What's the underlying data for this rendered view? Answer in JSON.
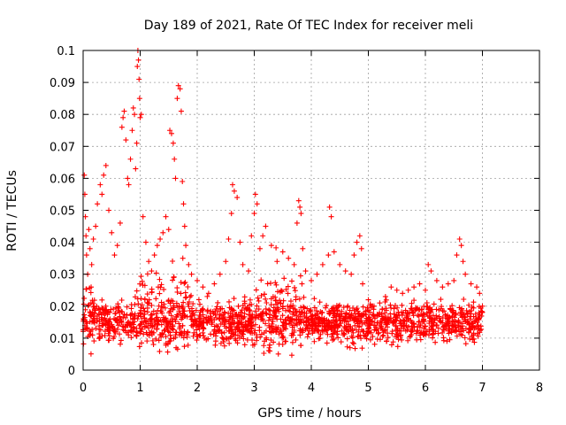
{
  "chart_data": {
    "type": "scatter",
    "title": "Day 189 of 2021, Rate Of TEC Index for receiver meli",
    "xlabel": "GPS time / hours",
    "ylabel": "ROTI / TECUs",
    "xlim": [
      0,
      8
    ],
    "ylim": [
      0,
      0.1
    ],
    "x_ticks": [
      "0",
      "1",
      "2",
      "3",
      "4",
      "5",
      "6",
      "7",
      "8"
    ],
    "y_ticks": [
      "0",
      "0.01",
      "0.02",
      "0.03",
      "0.04",
      "0.05",
      "0.06",
      "0.07",
      "0.08",
      "0.09",
      "0.1"
    ],
    "grid": true,
    "marker": "+",
    "color": "#ff0000",
    "series": [
      {
        "name": "ROTI",
        "points": [
          [
            0.02,
            0.061
          ],
          [
            0.03,
            0.055
          ],
          [
            0.04,
            0.048
          ],
          [
            0.05,
            0.042
          ],
          [
            0.06,
            0.036
          ],
          [
            0.08,
            0.03
          ],
          [
            0.1,
            0.044
          ],
          [
            0.12,
            0.038
          ],
          [
            0.15,
            0.033
          ],
          [
            0.18,
            0.041
          ],
          [
            0.22,
            0.045
          ],
          [
            0.25,
            0.052
          ],
          [
            0.3,
            0.058
          ],
          [
            0.33,
            0.055
          ],
          [
            0.36,
            0.061
          ],
          [
            0.4,
            0.064
          ],
          [
            0.45,
            0.05
          ],
          [
            0.5,
            0.043
          ],
          [
            0.55,
            0.036
          ],
          [
            0.6,
            0.039
          ],
          [
            0.65,
            0.046
          ],
          [
            0.68,
            0.076
          ],
          [
            0.7,
            0.079
          ],
          [
            0.72,
            0.081
          ],
          [
            0.75,
            0.072
          ],
          [
            0.78,
            0.06
          ],
          [
            0.8,
            0.058
          ],
          [
            0.83,
            0.066
          ],
          [
            0.86,
            0.075
          ],
          [
            0.88,
            0.082
          ],
          [
            0.9,
            0.08
          ],
          [
            0.92,
            0.063
          ],
          [
            0.94,
            0.071
          ],
          [
            0.95,
            0.095
          ],
          [
            0.96,
            0.1
          ],
          [
            0.97,
            0.097
          ],
          [
            0.98,
            0.091
          ],
          [
            0.99,
            0.085
          ],
          [
            1.0,
            0.079
          ],
          [
            1.02,
            0.08
          ],
          [
            1.05,
            0.048
          ],
          [
            1.1,
            0.04
          ],
          [
            1.15,
            0.034
          ],
          [
            1.2,
            0.031
          ],
          [
            1.25,
            0.036
          ],
          [
            1.3,
            0.039
          ],
          [
            1.35,
            0.041
          ],
          [
            1.4,
            0.043
          ],
          [
            1.45,
            0.048
          ],
          [
            1.5,
            0.044
          ],
          [
            1.52,
            0.075
          ],
          [
            1.55,
            0.074
          ],
          [
            1.58,
            0.071
          ],
          [
            1.6,
            0.066
          ],
          [
            1.62,
            0.06
          ],
          [
            1.65,
            0.085
          ],
          [
            1.67,
            0.089
          ],
          [
            1.7,
            0.088
          ],
          [
            1.72,
            0.081
          ],
          [
            1.74,
            0.059
          ],
          [
            1.76,
            0.052
          ],
          [
            1.78,
            0.045
          ],
          [
            1.8,
            0.039
          ],
          [
            1.85,
            0.033
          ],
          [
            1.9,
            0.03
          ],
          [
            2.0,
            0.028
          ],
          [
            2.1,
            0.026
          ],
          [
            2.2,
            0.024
          ],
          [
            2.3,
            0.027
          ],
          [
            2.4,
            0.03
          ],
          [
            2.5,
            0.034
          ],
          [
            2.55,
            0.041
          ],
          [
            2.6,
            0.049
          ],
          [
            2.62,
            0.058
          ],
          [
            2.65,
            0.056
          ],
          [
            2.7,
            0.054
          ],
          [
            2.75,
            0.04
          ],
          [
            2.8,
            0.033
          ],
          [
            2.9,
            0.031
          ],
          [
            2.95,
            0.042
          ],
          [
            3.0,
            0.049
          ],
          [
            3.02,
            0.055
          ],
          [
            3.05,
            0.052
          ],
          [
            3.1,
            0.038
          ],
          [
            3.15,
            0.042
          ],
          [
            3.2,
            0.045
          ],
          [
            3.3,
            0.039
          ],
          [
            3.4,
            0.034
          ],
          [
            3.5,
            0.037
          ],
          [
            3.6,
            0.035
          ],
          [
            3.7,
            0.033
          ],
          [
            3.75,
            0.046
          ],
          [
            3.78,
            0.053
          ],
          [
            3.8,
            0.051
          ],
          [
            3.82,
            0.049
          ],
          [
            3.85,
            0.038
          ],
          [
            3.9,
            0.031
          ],
          [
            4.0,
            0.028
          ],
          [
            4.1,
            0.03
          ],
          [
            4.2,
            0.033
          ],
          [
            4.3,
            0.036
          ],
          [
            4.32,
            0.051
          ],
          [
            4.35,
            0.048
          ],
          [
            4.4,
            0.037
          ],
          [
            4.5,
            0.033
          ],
          [
            4.6,
            0.031
          ],
          [
            4.7,
            0.03
          ],
          [
            4.75,
            0.036
          ],
          [
            4.8,
            0.04
          ],
          [
            4.85,
            0.042
          ],
          [
            4.88,
            0.038
          ],
          [
            4.9,
            0.027
          ],
          [
            5.0,
            0.022
          ],
          [
            5.1,
            0.02
          ],
          [
            5.2,
            0.021
          ],
          [
            5.3,
            0.023
          ],
          [
            5.4,
            0.026
          ],
          [
            5.5,
            0.025
          ],
          [
            5.6,
            0.024
          ],
          [
            5.7,
            0.025
          ],
          [
            5.8,
            0.026
          ],
          [
            5.9,
            0.027
          ],
          [
            6.0,
            0.025
          ],
          [
            6.05,
            0.033
          ],
          [
            6.1,
            0.031
          ],
          [
            6.2,
            0.028
          ],
          [
            6.3,
            0.026
          ],
          [
            6.4,
            0.027
          ],
          [
            6.5,
            0.028
          ],
          [
            6.55,
            0.036
          ],
          [
            6.6,
            0.041
          ],
          [
            6.63,
            0.039
          ],
          [
            6.66,
            0.034
          ],
          [
            6.7,
            0.03
          ],
          [
            6.8,
            0.027
          ],
          [
            6.9,
            0.026
          ],
          [
            6.95,
            0.024
          ],
          [
            7.0,
            0.02
          ]
        ]
      }
    ],
    "band": {
      "description": "dense background scatter",
      "x_range": [
        0.0,
        7.0
      ],
      "center": 0.015,
      "spread": 0.009,
      "count": 1800,
      "boost_ranges": [
        [
          0.9,
          1.6,
          0.006
        ],
        [
          1.5,
          1.9,
          0.007
        ],
        [
          3.0,
          3.9,
          0.006
        ],
        [
          0.0,
          0.2,
          0.004
        ]
      ]
    }
  }
}
